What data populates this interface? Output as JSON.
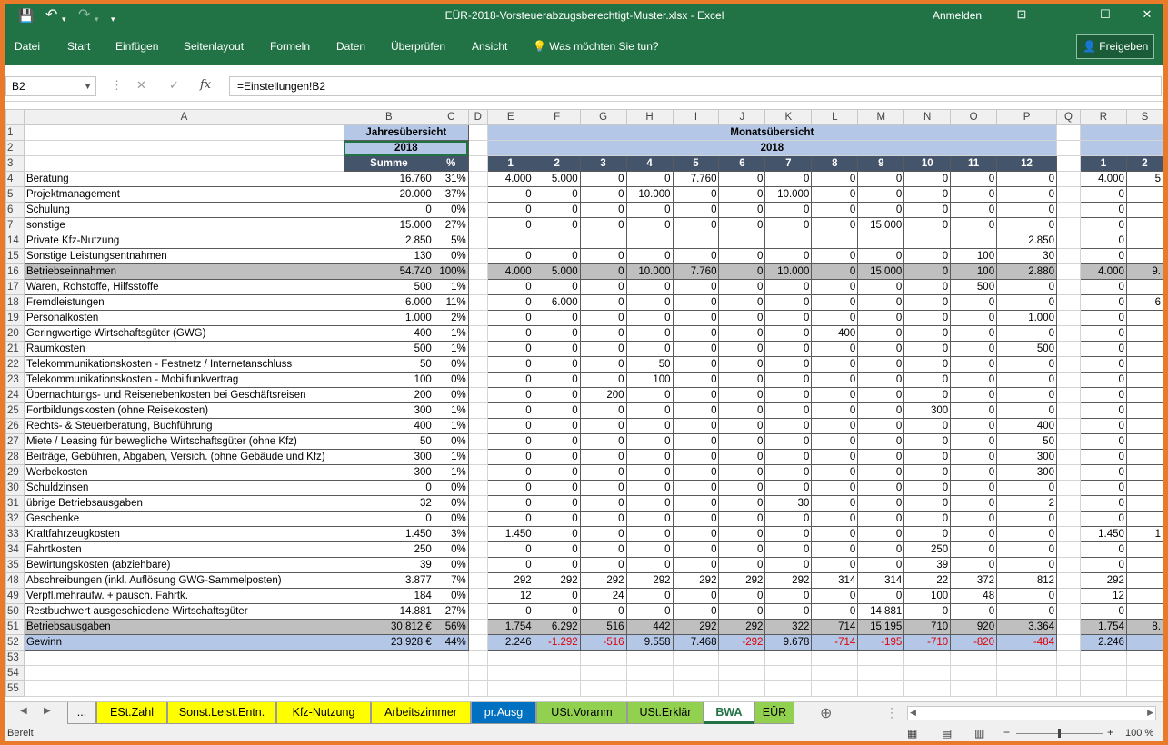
{
  "app": {
    "title": "EÜR-2018-Vorsteuerabzugsberechtigt-Muster.xlsx  -  Excel",
    "signin": "Anmelden",
    "brand_color": "#217346",
    "undo": "↶",
    "redo": "↷",
    "save_icon": "💾"
  },
  "ribbon": {
    "tabs": [
      "Datei",
      "Start",
      "Einfügen",
      "Seitenlayout",
      "Formeln",
      "Daten",
      "Überprüfen",
      "Ansicht"
    ],
    "tell_me": "Was möchten Sie tun?",
    "share": "Freigeben"
  },
  "formula_bar": {
    "name_box": "B2",
    "fx": "fx",
    "formula": "=Einstellungen!B2"
  },
  "columns": [
    "A",
    "B",
    "C",
    "D",
    "E",
    "F",
    "G",
    "H",
    "I",
    "J",
    "K",
    "L",
    "M",
    "N",
    "O",
    "P",
    "Q",
    "R",
    "S"
  ],
  "header_rows": {
    "row1": {
      "num": "1",
      "yearly": "Jahresübersicht",
      "monthly": "Monatsübersicht"
    },
    "row2": {
      "num": "2",
      "year": "2018",
      "year2": "2018"
    },
    "row3": {
      "num": "3",
      "sum": "Summe",
      "pct": "%",
      "months": [
        "1",
        "2",
        "3",
        "4",
        "5",
        "6",
        "7",
        "8",
        "9",
        "10",
        "11",
        "12"
      ],
      "r": "1",
      "s": "2"
    }
  },
  "rows": [
    {
      "num": "4",
      "label": "Beratung",
      "sum": "16.760",
      "pct": "31%",
      "m": [
        "4.000",
        "5.000",
        "0",
        "0",
        "7.760",
        "0",
        "0",
        "0",
        "0",
        "0",
        "0",
        "0"
      ],
      "r": "4.000",
      "s": "5",
      "style": ""
    },
    {
      "num": "5",
      "label": "Projektmanagement",
      "sum": "20.000",
      "pct": "37%",
      "m": [
        "0",
        "0",
        "0",
        "10.000",
        "0",
        "0",
        "10.000",
        "0",
        "0",
        "0",
        "0",
        "0"
      ],
      "r": "0",
      "s": "",
      "style": ""
    },
    {
      "num": "6",
      "label": "Schulung",
      "sum": "0",
      "pct": "0%",
      "m": [
        "0",
        "0",
        "0",
        "0",
        "0",
        "0",
        "0",
        "0",
        "0",
        "0",
        "0",
        "0"
      ],
      "r": "0",
      "s": "",
      "style": ""
    },
    {
      "num": "7",
      "label": "sonstige",
      "sum": "15.000",
      "pct": "27%",
      "m": [
        "0",
        "0",
        "0",
        "0",
        "0",
        "0",
        "0",
        "0",
        "15.000",
        "0",
        "0",
        "0"
      ],
      "r": "0",
      "s": "",
      "style": ""
    },
    {
      "num": "14",
      "label": "Private Kfz-Nutzung",
      "sum": "2.850",
      "pct": "5%",
      "m": [
        "",
        "",
        "",
        "",
        "",
        "",
        "",
        "",
        "",
        "",
        "",
        "2.850"
      ],
      "r": "0",
      "s": "",
      "style": ""
    },
    {
      "num": "15",
      "label": "Sonstige Leistungsentnahmen",
      "sum": "130",
      "pct": "0%",
      "m": [
        "0",
        "0",
        "0",
        "0",
        "0",
        "0",
        "0",
        "0",
        "0",
        "0",
        "100",
        "30"
      ],
      "r": "0",
      "s": "",
      "style": ""
    },
    {
      "num": "16",
      "label": "Betriebseinnahmen",
      "sum": "54.740",
      "pct": "100%",
      "m": [
        "4.000",
        "5.000",
        "0",
        "10.000",
        "7.760",
        "0",
        "10.000",
        "0",
        "15.000",
        "0",
        "100",
        "2.880"
      ],
      "r": "4.000",
      "s": "9.",
      "style": "grey"
    },
    {
      "num": "17",
      "label": "Waren, Rohstoffe, Hilfsstoffe",
      "sum": "500",
      "pct": "1%",
      "m": [
        "0",
        "0",
        "0",
        "0",
        "0",
        "0",
        "0",
        "0",
        "0",
        "0",
        "500",
        "0"
      ],
      "r": "0",
      "s": "",
      "style": ""
    },
    {
      "num": "18",
      "label": "Fremdleistungen",
      "sum": "6.000",
      "pct": "11%",
      "m": [
        "0",
        "6.000",
        "0",
        "0",
        "0",
        "0",
        "0",
        "0",
        "0",
        "0",
        "0",
        "0"
      ],
      "r": "0",
      "s": "6",
      "style": ""
    },
    {
      "num": "19",
      "label": "Personalkosten",
      "sum": "1.000",
      "pct": "2%",
      "m": [
        "0",
        "0",
        "0",
        "0",
        "0",
        "0",
        "0",
        "0",
        "0",
        "0",
        "0",
        "1.000"
      ],
      "r": "0",
      "s": "",
      "style": ""
    },
    {
      "num": "20",
      "label": "Geringwertige Wirtschaftsgüter (GWG)",
      "sum": "400",
      "pct": "1%",
      "m": [
        "0",
        "0",
        "0",
        "0",
        "0",
        "0",
        "0",
        "400",
        "0",
        "0",
        "0",
        "0"
      ],
      "r": "0",
      "s": "",
      "style": ""
    },
    {
      "num": "21",
      "label": "Raumkosten",
      "sum": "500",
      "pct": "1%",
      "m": [
        "0",
        "0",
        "0",
        "0",
        "0",
        "0",
        "0",
        "0",
        "0",
        "0",
        "0",
        "500"
      ],
      "r": "0",
      "s": "",
      "style": ""
    },
    {
      "num": "22",
      "label": "Telekommunikationskosten - Festnetz / Internetanschluss",
      "sum": "50",
      "pct": "0%",
      "m": [
        "0",
        "0",
        "0",
        "50",
        "0",
        "0",
        "0",
        "0",
        "0",
        "0",
        "0",
        "0"
      ],
      "r": "0",
      "s": "",
      "style": ""
    },
    {
      "num": "23",
      "label": "Telekommunikationskosten - Mobilfunkvertrag",
      "sum": "100",
      "pct": "0%",
      "m": [
        "0",
        "0",
        "0",
        "100",
        "0",
        "0",
        "0",
        "0",
        "0",
        "0",
        "0",
        "0"
      ],
      "r": "0",
      "s": "",
      "style": ""
    },
    {
      "num": "24",
      "label": "Übernachtungs- und Reisenebenkosten bei Geschäftsreisen",
      "sum": "200",
      "pct": "0%",
      "m": [
        "0",
        "0",
        "200",
        "0",
        "0",
        "0",
        "0",
        "0",
        "0",
        "0",
        "0",
        "0"
      ],
      "r": "0",
      "s": "",
      "style": ""
    },
    {
      "num": "25",
      "label": "Fortbildungskosten (ohne Reisekosten)",
      "sum": "300",
      "pct": "1%",
      "m": [
        "0",
        "0",
        "0",
        "0",
        "0",
        "0",
        "0",
        "0",
        "0",
        "300",
        "0",
        "0"
      ],
      "r": "0",
      "s": "",
      "style": ""
    },
    {
      "num": "26",
      "label": "Rechts- & Steuerberatung, Buchführung",
      "sum": "400",
      "pct": "1%",
      "m": [
        "0",
        "0",
        "0",
        "0",
        "0",
        "0",
        "0",
        "0",
        "0",
        "0",
        "0",
        "400"
      ],
      "r": "0",
      "s": "",
      "style": ""
    },
    {
      "num": "27",
      "label": "Miete / Leasing für bewegliche Wirtschaftsgüter (ohne Kfz)",
      "sum": "50",
      "pct": "0%",
      "m": [
        "0",
        "0",
        "0",
        "0",
        "0",
        "0",
        "0",
        "0",
        "0",
        "0",
        "0",
        "50"
      ],
      "r": "0",
      "s": "",
      "style": ""
    },
    {
      "num": "28",
      "label": "Beiträge, Gebühren, Abgaben, Versich. (ohne Gebäude und Kfz)",
      "sum": "300",
      "pct": "1%",
      "m": [
        "0",
        "0",
        "0",
        "0",
        "0",
        "0",
        "0",
        "0",
        "0",
        "0",
        "0",
        "300"
      ],
      "r": "0",
      "s": "",
      "style": ""
    },
    {
      "num": "29",
      "label": "Werbekosten",
      "sum": "300",
      "pct": "1%",
      "m": [
        "0",
        "0",
        "0",
        "0",
        "0",
        "0",
        "0",
        "0",
        "0",
        "0",
        "0",
        "300"
      ],
      "r": "0",
      "s": "",
      "style": ""
    },
    {
      "num": "30",
      "label": "Schuldzinsen",
      "sum": "0",
      "pct": "0%",
      "m": [
        "0",
        "0",
        "0",
        "0",
        "0",
        "0",
        "0",
        "0",
        "0",
        "0",
        "0",
        "0"
      ],
      "r": "0",
      "s": "",
      "style": ""
    },
    {
      "num": "31",
      "label": "übrige Betriebsausgaben",
      "sum": "32",
      "pct": "0%",
      "m": [
        "0",
        "0",
        "0",
        "0",
        "0",
        "0",
        "30",
        "0",
        "0",
        "0",
        "0",
        "2"
      ],
      "r": "0",
      "s": "",
      "style": ""
    },
    {
      "num": "32",
      "label": "Geschenke",
      "sum": "0",
      "pct": "0%",
      "m": [
        "0",
        "0",
        "0",
        "0",
        "0",
        "0",
        "0",
        "0",
        "0",
        "0",
        "0",
        "0"
      ],
      "r": "0",
      "s": "",
      "style": ""
    },
    {
      "num": "33",
      "label": "Kraftfahrzeugkosten",
      "sum": "1.450",
      "pct": "3%",
      "m": [
        "1.450",
        "0",
        "0",
        "0",
        "0",
        "0",
        "0",
        "0",
        "0",
        "0",
        "0",
        "0"
      ],
      "r": "1.450",
      "s": "1",
      "style": ""
    },
    {
      "num": "34",
      "label": "Fahrtkosten",
      "sum": "250",
      "pct": "0%",
      "m": [
        "0",
        "0",
        "0",
        "0",
        "0",
        "0",
        "0",
        "0",
        "0",
        "250",
        "0",
        "0"
      ],
      "r": "0",
      "s": "",
      "style": ""
    },
    {
      "num": "35",
      "label": "Bewirtungskosten (abziehbare)",
      "sum": "39",
      "pct": "0%",
      "m": [
        "0",
        "0",
        "0",
        "0",
        "0",
        "0",
        "0",
        "0",
        "0",
        "39",
        "0",
        "0"
      ],
      "r": "0",
      "s": "",
      "style": ""
    },
    {
      "num": "48",
      "label": "Abschreibungen (inkl. Auflösung GWG-Sammelposten)",
      "sum": "3.877",
      "pct": "7%",
      "m": [
        "292",
        "292",
        "292",
        "292",
        "292",
        "292",
        "292",
        "314",
        "314",
        "22",
        "372",
        "812"
      ],
      "r": "292",
      "s": "",
      "style": ""
    },
    {
      "num": "49",
      "label": "Verpfl.mehraufw. + pausch. Fahrtk.",
      "sum": "184",
      "pct": "0%",
      "m": [
        "12",
        "0",
        "24",
        "0",
        "0",
        "0",
        "0",
        "0",
        "0",
        "100",
        "48",
        "0"
      ],
      "r": "12",
      "s": "",
      "style": ""
    },
    {
      "num": "50",
      "label": "Restbuchwert ausgeschiedene Wirtschaftsgüter",
      "sum": "14.881",
      "pct": "27%",
      "m": [
        "0",
        "0",
        "0",
        "0",
        "0",
        "0",
        "0",
        "0",
        "14.881",
        "0",
        "0",
        "0"
      ],
      "r": "0",
      "s": "",
      "style": ""
    },
    {
      "num": "51",
      "label": "Betriebsausgaben",
      "sum": "30.812 €",
      "pct": "56%",
      "m": [
        "1.754",
        "6.292",
        "516",
        "442",
        "292",
        "292",
        "322",
        "714",
        "15.195",
        "710",
        "920",
        "3.364"
      ],
      "r": "1.754",
      "s": "8.",
      "style": "grey"
    },
    {
      "num": "52",
      "label": "Gewinn",
      "sum": "23.928 €",
      "pct": "44%",
      "m": [
        "2.246",
        "-1.292",
        "-516",
        "9.558",
        "7.468",
        "-292",
        "9.678",
        "-714",
        "-195",
        "-710",
        "-820",
        "-484"
      ],
      "r": "2.246",
      "s": "",
      "style": "lblue"
    }
  ],
  "empty_rows": [
    "53",
    "54",
    "55"
  ],
  "sheet_tabs": [
    {
      "label": "...",
      "color": "#f0f0f0"
    },
    {
      "label": "ESt.Zahl",
      "color": "#ffff00"
    },
    {
      "label": "Sonst.Leist.Entn.",
      "color": "#ffff00"
    },
    {
      "label": "Kfz-Nutzung",
      "color": "#ffff00"
    },
    {
      "label": "Arbeitszimmer",
      "color": "#ffff00"
    },
    {
      "label": "pr.Ausg",
      "color": "#0070c0"
    },
    {
      "label": "USt.Voranm",
      "color": "#92d050"
    },
    {
      "label": "USt.Erklär",
      "color": "#92d050"
    },
    {
      "label": "BWA",
      "color": "#ffffff"
    },
    {
      "label": "EÜR",
      "color": "#92d050"
    }
  ],
  "status": {
    "ready": "Bereit",
    "zoom": "100 %",
    "minus": "−",
    "plus": "+"
  }
}
